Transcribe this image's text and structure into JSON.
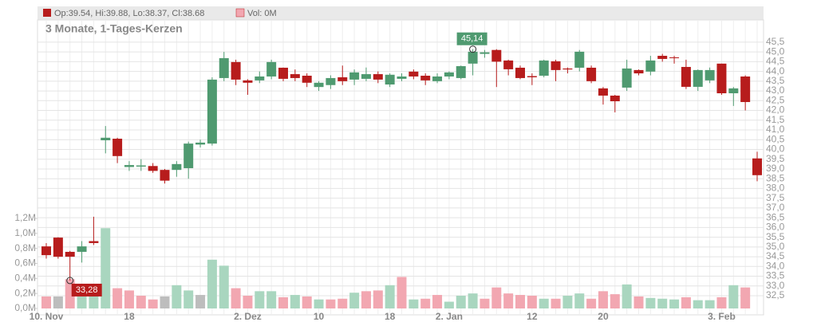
{
  "chart_data": {
    "type": "candlestick",
    "subtitle": "3 Monate, 1-Tages-Kerzen",
    "legend": {
      "ohlc": "Op:39.54, Hi:39.88, Lo:38.37, Cl:38.68",
      "volume": "Vol: 0M"
    },
    "categories": [
      "10. Nov",
      null,
      null,
      null,
      null,
      null,
      null,
      "18",
      null,
      null,
      null,
      null,
      null,
      null,
      null,
      null,
      null,
      "2. Dez",
      null,
      null,
      null,
      null,
      null,
      "10",
      null,
      null,
      null,
      null,
      null,
      "18",
      null,
      null,
      null,
      null,
      "2. Jan",
      null,
      null,
      null,
      null,
      null,
      null,
      "12",
      null,
      null,
      null,
      null,
      null,
      "20",
      null,
      null,
      null,
      null,
      null,
      null,
      null,
      null,
      null,
      "3. Feb",
      null,
      null,
      null
    ],
    "open": [
      35.03,
      35.48,
      34.75,
      34.75,
      35.3,
      40.47,
      40.55,
      39.1,
      39.12,
      39.15,
      38.95,
      38.95,
      39.04,
      40.25,
      40.3,
      43.66,
      44.48,
      43.54,
      43.54,
      43.74,
      44.19,
      43.86,
      43.78,
      43.2,
      43.3,
      43.7,
      43.58,
      43.62,
      43.86,
      43.33,
      43.62,
      43.99,
      43.78,
      43.5,
      43.74,
      43.66,
      44.4,
      44.9,
      45.1,
      44.56,
      44.19,
      43.76,
      43.78,
      44.52,
      44.15,
      44.19,
      44.19,
      43.13,
      42.76,
      43.17,
      44.07,
      43.99,
      44.8,
      44.72,
      44.23,
      43.21,
      43.54,
      44.4,
      42.88,
      43.74,
      39.54
    ],
    "high": [
      35.2,
      35.5,
      34.8,
      35.3,
      36.55,
      41.2,
      40.6,
      39.4,
      39.5,
      39.3,
      39.0,
      39.4,
      40.4,
      40.5,
      43.7,
      45.0,
      44.6,
      43.6,
      44.0,
      44.6,
      44.2,
      44.1,
      43.9,
      43.5,
      43.8,
      44.3,
      44.1,
      44.2,
      44.0,
      43.9,
      43.9,
      44.1,
      43.9,
      43.9,
      44.0,
      44.3,
      45.14,
      45.1,
      45.14,
      44.6,
      44.3,
      43.9,
      44.6,
      44.6,
      44.2,
      45.1,
      44.3,
      43.2,
      42.8,
      44.6,
      44.1,
      44.8,
      44.9,
      44.8,
      44.6,
      44.1,
      44.2,
      44.4,
      43.2,
      43.8,
      39.88
    ],
    "low": [
      34.4,
      34.4,
      33.28,
      34.2,
      35.1,
      39.8,
      39.3,
      38.9,
      38.9,
      38.8,
      38.25,
      38.6,
      38.5,
      40.1,
      40.2,
      43.5,
      43.3,
      42.8,
      43.4,
      43.6,
      43.5,
      43.5,
      43.2,
      43.0,
      43.1,
      43.3,
      43.3,
      43.5,
      43.4,
      43.2,
      43.5,
      43.6,
      43.3,
      43.4,
      43.6,
      43.6,
      43.8,
      44.7,
      43.2,
      43.8,
      43.6,
      43.3,
      43.7,
      43.5,
      43.9,
      44.0,
      43.4,
      42.3,
      41.9,
      43.0,
      43.8,
      43.8,
      44.5,
      44.4,
      43.1,
      43.0,
      43.4,
      42.8,
      42.23,
      42.0,
      38.37
    ],
    "close": [
      34.58,
      34.5,
      34.5,
      35.03,
      35.2,
      40.6,
      39.66,
      39.2,
      39.18,
      38.9,
      38.4,
      39.25,
      40.3,
      40.35,
      43.58,
      44.68,
      43.58,
      43.42,
      43.74,
      44.48,
      43.62,
      43.66,
      43.42,
      43.42,
      43.66,
      43.5,
      43.95,
      43.86,
      43.58,
      43.83,
      43.74,
      43.74,
      43.54,
      43.74,
      43.95,
      44.27,
      45.01,
      44.98,
      44.5,
      44.11,
      43.66,
      43.7,
      44.56,
      44.07,
      44.1,
      45.01,
      43.5,
      42.76,
      42.47,
      44.15,
      43.9,
      44.56,
      44.64,
      44.68,
      43.21,
      44.07,
      44.07,
      42.88,
      43.13,
      42.43,
      38.68
    ],
    "up_color": "#4f9a70",
    "down_color": "#b71c1c",
    "volume": {
      "values": [
        160000,
        160000,
        390000,
        160000,
        180000,
        1070000,
        270000,
        240000,
        170000,
        120000,
        160000,
        310000,
        240000,
        180000,
        650000,
        570000,
        270000,
        170000,
        230000,
        230000,
        150000,
        180000,
        160000,
        120000,
        120000,
        130000,
        210000,
        230000,
        240000,
        310000,
        420000,
        120000,
        130000,
        180000,
        90000,
        170000,
        200000,
        130000,
        280000,
        200000,
        180000,
        170000,
        130000,
        130000,
        170000,
        200000,
        130000,
        230000,
        190000,
        320000,
        160000,
        140000,
        130000,
        120000,
        150000,
        110000,
        110000,
        150000,
        310000,
        280000,
        0
      ],
      "colors": [
        "#f2a7b1",
        "#bdbdbd",
        "#f2a7b1",
        "#a9d6bf",
        "#a9d6bf",
        "#a9d6bf",
        "#f2a7b1",
        "#f2a7b1",
        "#f2a7b1",
        "#f2a7b1",
        "#bdbdbd",
        "#a9d6bf",
        "#a9d6bf",
        "#bdbdbd",
        "#a9d6bf",
        "#a9d6bf",
        "#f2a7b1",
        "#f2a7b1",
        "#a9d6bf",
        "#a9d6bf",
        "#f2a7b1",
        "#a9d6bf",
        "#f2a7b1",
        "#a9d6bf",
        "#f2a7b1",
        "#f2a7b1",
        "#a9d6bf",
        "#f2a7b1",
        "#f2a7b1",
        "#a9d6bf",
        "#f2a7b1",
        "#a9d6bf",
        "#f2a7b1",
        "#f2a7b1",
        "#a9d6bf",
        "#a9d6bf",
        "#a9d6bf",
        "#f2a7b1",
        "#f2a7b1",
        "#f2a7b1",
        "#f2a7b1",
        "#f2a7b1",
        "#a9d6bf",
        "#f2a7b1",
        "#a9d6bf",
        "#a9d6bf",
        "#f2a7b1",
        "#f2a7b1",
        "#f2a7b1",
        "#a9d6bf",
        "#f2a7b1",
        "#a9d6bf",
        "#a9d6bf",
        "#a9d6bf",
        "#f2a7b1",
        "#a9d6bf",
        "#a9d6bf",
        "#f2a7b1",
        "#a9d6bf",
        "#f2a7b1",
        "#f2a7b1"
      ],
      "ylim": [
        0,
        1200000
      ],
      "yticks": [
        {
          "value": 0,
          "label": "0,0M"
        },
        {
          "value": 200000,
          "label": "0,2M"
        },
        {
          "value": 400000,
          "label": "0,4M"
        },
        {
          "value": 600000,
          "label": "0,6M"
        },
        {
          "value": 800000,
          "label": "0,8M"
        },
        {
          "value": 1000000,
          "label": "1,0M"
        },
        {
          "value": 1200000,
          "label": "1,2M"
        }
      ]
    },
    "ylim": [
      31.52,
      46.64
    ],
    "yticks": [
      {
        "value": 32.5,
        "label": "32,5"
      },
      {
        "value": 33.0,
        "label": "33,0"
      },
      {
        "value": 33.5,
        "label": "33,5"
      },
      {
        "value": 34.0,
        "label": "34,0"
      },
      {
        "value": 34.5,
        "label": "34,5"
      },
      {
        "value": 35.0,
        "label": "35,0"
      },
      {
        "value": 35.5,
        "label": "35,5"
      },
      {
        "value": 36.0,
        "label": "36,0"
      },
      {
        "value": 36.5,
        "label": "36,5"
      },
      {
        "value": 37.0,
        "label": "37,0"
      },
      {
        "value": 37.5,
        "label": "37,5"
      },
      {
        "value": 38.0,
        "label": "38,0"
      },
      {
        "value": 38.5,
        "label": "38,5"
      },
      {
        "value": 39.0,
        "label": "39,0"
      },
      {
        "value": 39.5,
        "label": "39,5"
      },
      {
        "value": 40.0,
        "label": "40,0"
      },
      {
        "value": 40.5,
        "label": "40,5"
      },
      {
        "value": 41.0,
        "label": "41,0"
      },
      {
        "value": 41.5,
        "label": "41,5"
      },
      {
        "value": 42.0,
        "label": "42,0"
      },
      {
        "value": 42.5,
        "label": "42,5"
      },
      {
        "value": 43.0,
        "label": "43,0"
      },
      {
        "value": 43.5,
        "label": "43,5"
      },
      {
        "value": 44.0,
        "label": "44,0"
      },
      {
        "value": 44.5,
        "label": "44,5"
      },
      {
        "value": 45.0,
        "label": "45,0"
      },
      {
        "value": 45.5,
        "label": "45,5"
      }
    ],
    "grid": true,
    "annotations": [
      {
        "label": "45,14",
        "value": 45.14,
        "kind": "high"
      },
      {
        "label": "33,28",
        "value": 33.28,
        "kind": "low"
      }
    ]
  }
}
